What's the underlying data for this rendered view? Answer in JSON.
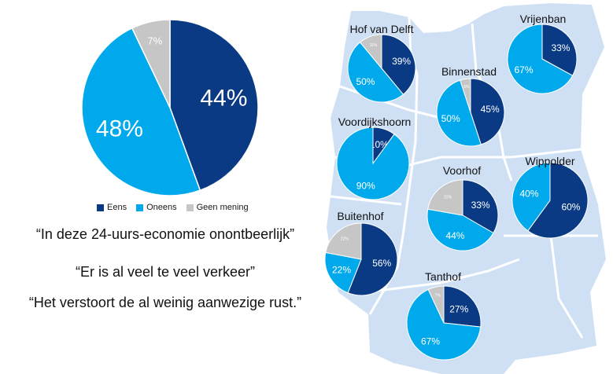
{
  "colors": {
    "eens": "#0b3a85",
    "oneens": "#00a9ec",
    "geen": "#c6c6c6",
    "map": "#cfe0f5",
    "map_line": "#ffffff"
  },
  "legend": {
    "eens": "Eens",
    "oneens": "Oneens",
    "geen": "Geen mening"
  },
  "quotes": [
    "“In deze 24-uurs-economie onontbeerlijk”",
    "“Er is al veel te veel verkeer”",
    "“Het verstoort de al weinig aanwezige rust.”"
  ],
  "chart_data": [
    {
      "type": "pie",
      "name": "Totaal",
      "slices": [
        {
          "label": "Eens",
          "value": 44,
          "text": "44%"
        },
        {
          "label": "Oneens",
          "value": 48,
          "text": "48%"
        },
        {
          "label": "Geen mening",
          "value": 7,
          "text": "7%"
        }
      ]
    },
    {
      "type": "pie",
      "name": "Hof van Delft",
      "slices": [
        {
          "label": "Eens",
          "value": 39,
          "text": "39%"
        },
        {
          "label": "Oneens",
          "value": 50,
          "text": "50%"
        },
        {
          "label": "Geen mening",
          "value": 11,
          "text": "11%"
        }
      ]
    },
    {
      "type": "pie",
      "name": "Vrijenban",
      "slices": [
        {
          "label": "Eens",
          "value": 33,
          "text": "33%"
        },
        {
          "label": "Oneens",
          "value": 67,
          "text": "67%"
        },
        {
          "label": "Geen mening",
          "value": 0,
          "text": ""
        }
      ]
    },
    {
      "type": "pie",
      "name": "Binnenstad",
      "slices": [
        {
          "label": "Eens",
          "value": 45,
          "text": "45%"
        },
        {
          "label": "Oneens",
          "value": 50,
          "text": "50%"
        },
        {
          "label": "Geen mening",
          "value": 5,
          "text": "5%"
        }
      ]
    },
    {
      "type": "pie",
      "name": "Voordijkshoorn",
      "slices": [
        {
          "label": "Eens",
          "value": 10,
          "text": "10%"
        },
        {
          "label": "Oneens",
          "value": 90,
          "text": "90%"
        },
        {
          "label": "Geen mening",
          "value": 0,
          "text": ""
        }
      ]
    },
    {
      "type": "pie",
      "name": "Voorhof",
      "slices": [
        {
          "label": "Eens",
          "value": 33,
          "text": "33%"
        },
        {
          "label": "Oneens",
          "value": 44,
          "text": "44%"
        },
        {
          "label": "Geen mening",
          "value": 22,
          "text": "22%"
        }
      ]
    },
    {
      "type": "pie",
      "name": "Wippolder",
      "slices": [
        {
          "label": "Eens",
          "value": 60,
          "text": "60%"
        },
        {
          "label": "Oneens",
          "value": 40,
          "text": "40%"
        },
        {
          "label": "Geen mening",
          "value": 0,
          "text": ""
        }
      ]
    },
    {
      "type": "pie",
      "name": "Buitenhof",
      "slices": [
        {
          "label": "Eens",
          "value": 56,
          "text": "56%"
        },
        {
          "label": "Oneens",
          "value": 22,
          "text": "22%"
        },
        {
          "label": "Geen mening",
          "value": 22,
          "text": "22%"
        }
      ]
    },
    {
      "type": "pie",
      "name": "Tanthof",
      "slices": [
        {
          "label": "Eens",
          "value": 27,
          "text": "27%"
        },
        {
          "label": "Oneens",
          "value": 67,
          "text": "67%"
        },
        {
          "label": "Geen mening",
          "value": 7,
          "text": "7%"
        }
      ]
    }
  ]
}
